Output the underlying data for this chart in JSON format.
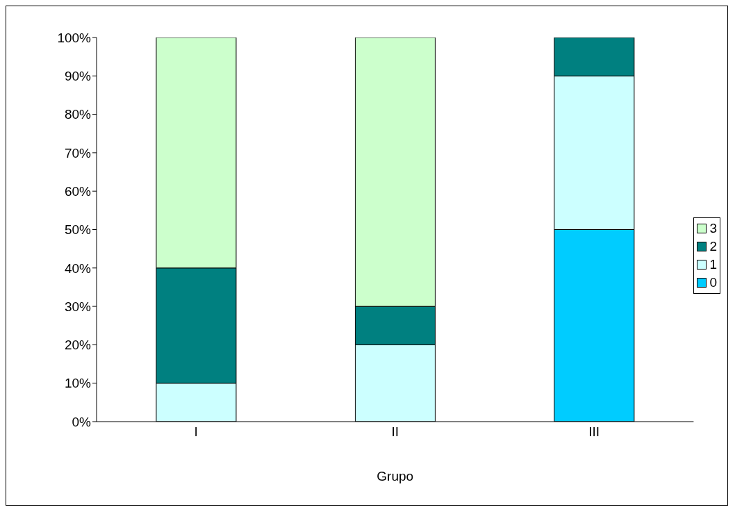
{
  "chart_data": {
    "type": "bar",
    "stacked": true,
    "categories": [
      "I",
      "II",
      "III"
    ],
    "xlabel": "Grupo",
    "series": [
      {
        "name": "0",
        "color": "#00ccff",
        "values": [
          0,
          0,
          50
        ]
      },
      {
        "name": "1",
        "color": "#ccffff",
        "values": [
          10,
          20,
          40
        ]
      },
      {
        "name": "2",
        "color": "#008080",
        "values": [
          30,
          10,
          10
        ]
      },
      {
        "name": "3",
        "color": "#ccffcc",
        "values": [
          60,
          70,
          0
        ]
      }
    ],
    "ylim": [
      0,
      100
    ],
    "yticks": [
      {
        "value": 0,
        "label": "0%"
      },
      {
        "value": 10,
        "label": "10%"
      },
      {
        "value": 20,
        "label": "20%"
      },
      {
        "value": 30,
        "label": "30%"
      },
      {
        "value": 40,
        "label": "40%"
      },
      {
        "value": 50,
        "label": "50%"
      },
      {
        "value": 60,
        "label": "60%"
      },
      {
        "value": 70,
        "label": "70%"
      },
      {
        "value": 80,
        "label": "80%"
      },
      {
        "value": 90,
        "label": "90%"
      },
      {
        "value": 100,
        "label": "100%"
      }
    ],
    "grid": false,
    "legend": "right"
  }
}
